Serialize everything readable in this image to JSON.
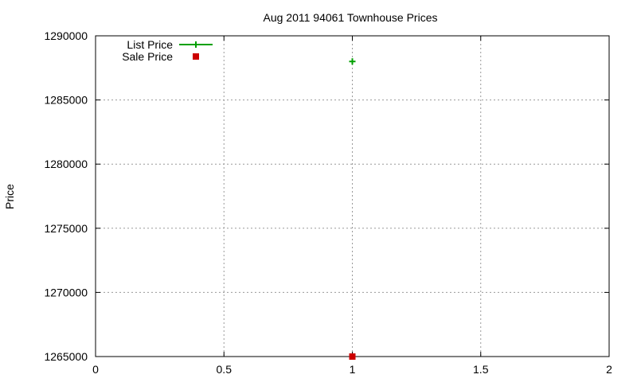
{
  "chart_data": {
    "type": "scatter",
    "title": "Aug 2011 94061 Townhouse Prices",
    "xlabel": "",
    "ylabel": "Price",
    "xlim": [
      0,
      2
    ],
    "ylim": [
      1265000,
      1290000
    ],
    "x_ticks": [
      "0",
      "0.5",
      "1",
      "1.5",
      "2"
    ],
    "y_ticks": [
      "1265000",
      "1270000",
      "1275000",
      "1280000",
      "1285000",
      "1290000"
    ],
    "grid": true,
    "legend_position": "top-left",
    "series": [
      {
        "name": "List Price",
        "color": "#00a000",
        "marker": "plus",
        "points": [
          {
            "x": 1,
            "y": 1288000
          }
        ]
      },
      {
        "name": "Sale Price",
        "color": "#cc0000",
        "marker": "square",
        "points": [
          {
            "x": 1,
            "y": 1265000
          }
        ]
      }
    ]
  }
}
